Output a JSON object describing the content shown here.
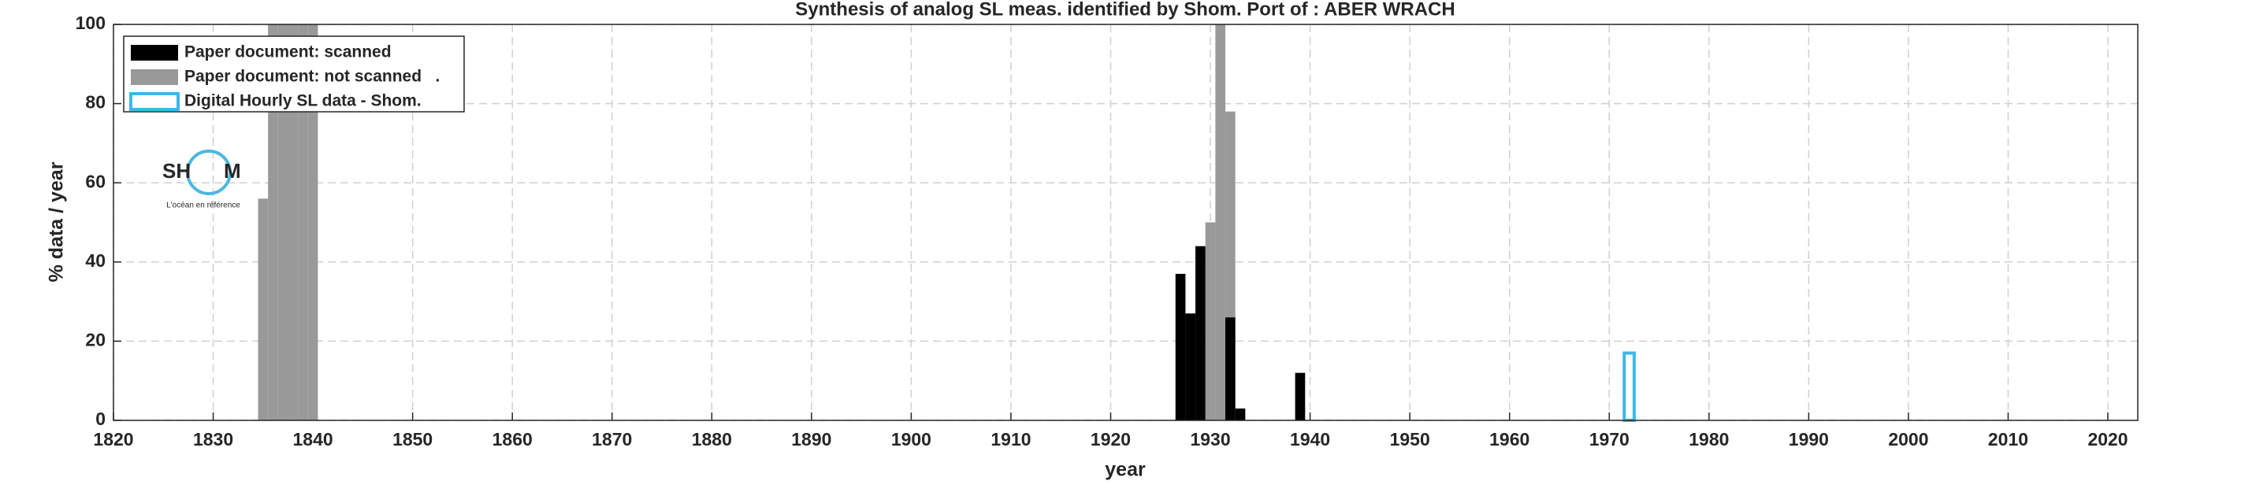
{
  "chart_data": {
    "type": "bar",
    "title": "Synthesis of analog SL meas. identified by Shom. Port of : ABER WRACH",
    "xlabel": "year",
    "ylabel": "% data / year",
    "xlim": [
      1820,
      2023
    ],
    "xticks": [
      1820,
      1830,
      1840,
      1850,
      1860,
      1870,
      1880,
      1890,
      1900,
      1910,
      1920,
      1930,
      1940,
      1950,
      1960,
      1970,
      1980,
      1990,
      2000,
      2010,
      2020
    ],
    "ylim": [
      0,
      100
    ],
    "yticks": [
      0,
      20,
      40,
      60,
      80,
      100
    ],
    "grid": true,
    "legend": "upper left",
    "series": [
      {
        "name": "Paper document: not scanned   .",
        "color": "#999999",
        "style": "filled",
        "x": [
          1835,
          1836,
          1837,
          1838,
          1839,
          1840,
          1930,
          1931,
          1932
        ],
        "values": [
          56,
          100,
          100,
          100,
          100,
          100,
          50,
          100,
          78
        ]
      },
      {
        "name": "Paper document: scanned",
        "color": "#000000",
        "style": "filled",
        "x": [
          1927,
          1928,
          1929,
          1932,
          1933,
          1939
        ],
        "values": [
          37,
          27,
          44,
          26,
          3,
          12
        ]
      },
      {
        "name": "Digital Hourly SL data - Shom.",
        "color": "#3db8e8",
        "style": "outline",
        "x": [
          1972
        ],
        "values": [
          17
        ]
      }
    ]
  },
  "logo": {
    "left": "SH",
    "right": "M",
    "tagline": "L'océan en référence"
  }
}
